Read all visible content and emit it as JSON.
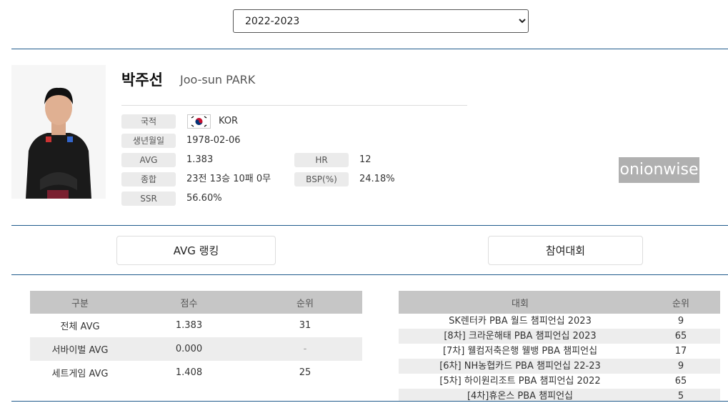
{
  "season_select": {
    "value": "2022-2023",
    "options": [
      "2022-2023"
    ]
  },
  "player": {
    "name_ko": "박주선",
    "name_en": "Joo-sun PARK",
    "fields": {
      "nationality_label": "국적",
      "nationality": "KOR",
      "birth_label": "생년월일",
      "birth": "1978-02-06",
      "avg_label": "AVG",
      "avg": "1.383",
      "hr_label": "HR",
      "hr": "12",
      "record_label": "종합",
      "record": "23전 13승 10패 0무",
      "bsp_label": "BSP(%)",
      "bsp": "24.18%",
      "ssr_label": "SSR",
      "ssr": "56.60%"
    }
  },
  "buttons": {
    "avg_ranking": "AVG 랭킹",
    "tournaments": "참여대회"
  },
  "avg_table": {
    "headers": [
      "구분",
      "점수",
      "순위"
    ],
    "rows": [
      [
        "전체 AVG",
        "1.383",
        "31"
      ],
      [
        "서바이벌 AVG",
        "0.000",
        "-"
      ],
      [
        "세트게임 AVG",
        "1.408",
        "25"
      ]
    ]
  },
  "tour_table": {
    "headers": [
      "대회",
      "순위"
    ],
    "rows": [
      [
        "SK렌터카 PBA 월드 챔피언십 2023",
        "9"
      ],
      [
        "[8차] 크라운해태 PBA 챔피언십 2023",
        "65"
      ],
      [
        "[7차] 웰컴저축은행 웰뱅 PBA 챔피언십",
        "17"
      ],
      [
        "[6차] NH농협카드 PBA 챔피언십 22-23",
        "9"
      ],
      [
        "[5차] 하이원리조트 PBA 챔피언십 2022",
        "65"
      ],
      [
        "[4차]휴온스 PBA 챔피언십",
        "5"
      ]
    ]
  },
  "watermark": "onionwise",
  "colors": {
    "accent_line": "#1f5a8c",
    "header_bg": "#c6c6c6",
    "label_bg": "#ebebeb"
  }
}
